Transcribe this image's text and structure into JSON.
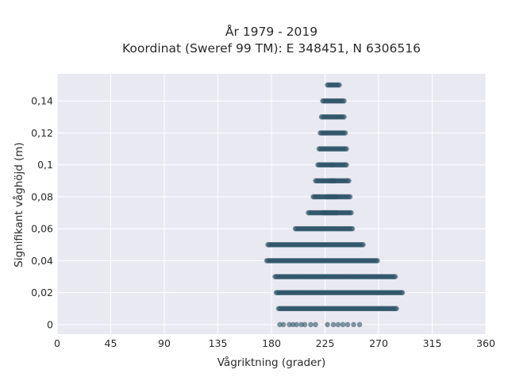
{
  "chart_data": {
    "type": "scatter",
    "title_lines": [
      "År 1979 - 2019",
      "Koordinat (Sweref 99 TM): E 348451, N 6306516"
    ],
    "xlabel": "Vågriktning (grader)",
    "ylabel": "Signifikant våghöjd (m)",
    "xlim": [
      0,
      360
    ],
    "ylim": [
      -0.006,
      0.157
    ],
    "xticks": [
      0,
      45,
      90,
      135,
      180,
      225,
      270,
      315,
      360
    ],
    "xtick_labels": [
      "0",
      "45",
      "90",
      "135",
      "180",
      "225",
      "270",
      "315",
      "360"
    ],
    "yticks": [
      0,
      0.02,
      0.04,
      0.06,
      0.08,
      0.1,
      0.12,
      0.14
    ],
    "ytick_labels": [
      "0",
      "0,02",
      "0,04",
      "0,06",
      "0,08",
      "0,1",
      "0,12",
      "0,14"
    ],
    "grid": true,
    "background": "#e9e9f2",
    "marker_color": "#2e5468",
    "bands": [
      {
        "y": 0.15,
        "x_min": 227,
        "x_max": 237
      },
      {
        "y": 0.14,
        "x_min": 223,
        "x_max": 241
      },
      {
        "y": 0.13,
        "x_min": 222,
        "x_max": 241
      },
      {
        "y": 0.12,
        "x_min": 221,
        "x_max": 242
      },
      {
        "y": 0.11,
        "x_min": 220,
        "x_max": 243
      },
      {
        "y": 0.1,
        "x_min": 219,
        "x_max": 243
      },
      {
        "y": 0.09,
        "x_min": 217,
        "x_max": 245
      },
      {
        "y": 0.08,
        "x_min": 215,
        "x_max": 246
      },
      {
        "y": 0.07,
        "x_min": 211,
        "x_max": 247
      },
      {
        "y": 0.06,
        "x_min": 200,
        "x_max": 248
      },
      {
        "y": 0.05,
        "x_min": 177,
        "x_max": 257
      },
      {
        "y": 0.04,
        "x_min": 176,
        "x_max": 269
      },
      {
        "y": 0.03,
        "x_min": 183,
        "x_max": 284
      },
      {
        "y": 0.02,
        "x_min": 184,
        "x_max": 290
      },
      {
        "y": 0.01,
        "x_min": 186,
        "x_max": 285
      }
    ],
    "points_at_zero": [
      187,
      190,
      195,
      198,
      201,
      205,
      208,
      213,
      217,
      227,
      232,
      236,
      240,
      244,
      249,
      254
    ]
  }
}
